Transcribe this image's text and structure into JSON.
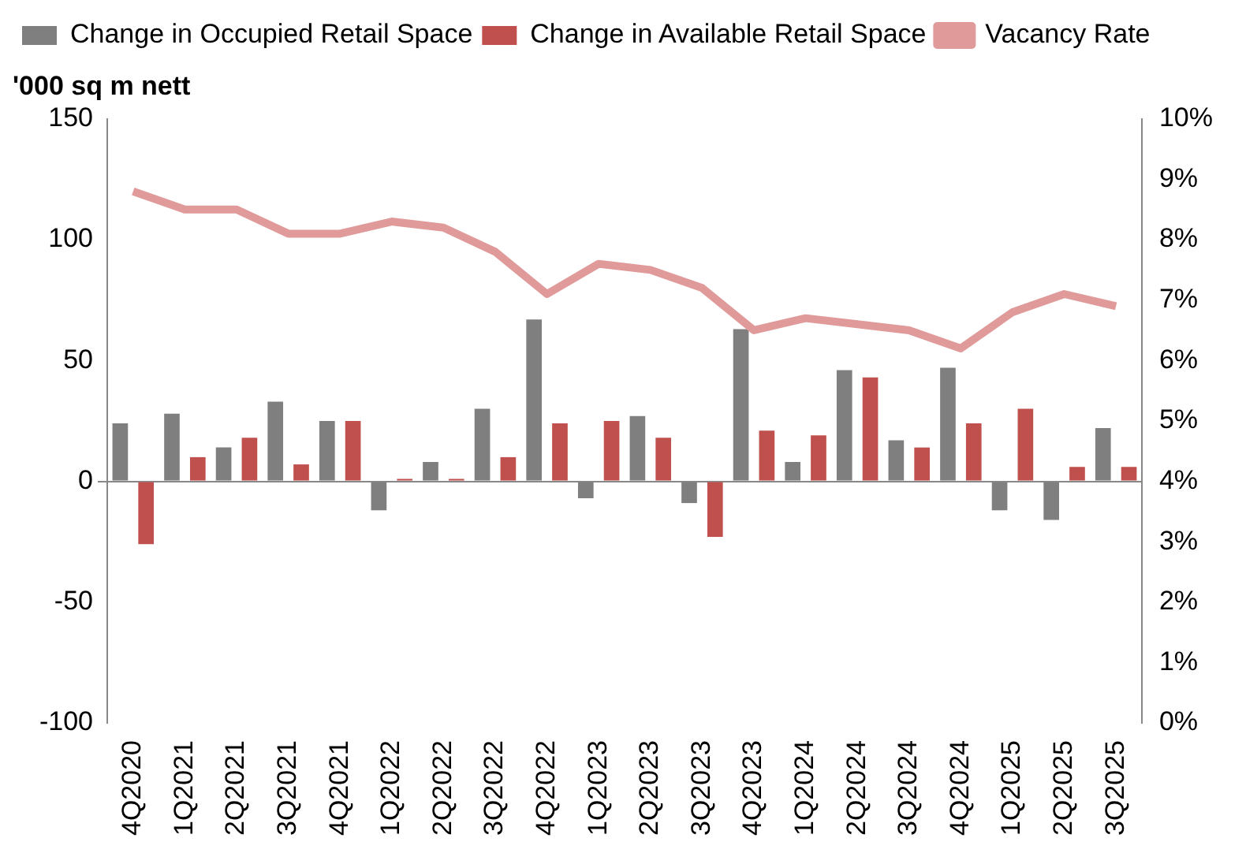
{
  "chart_data": {
    "type": "bar",
    "ylabel": "'000 sq m nett",
    "categories": [
      "4Q2020",
      "1Q2021",
      "2Q2021",
      "3Q2021",
      "4Q2021",
      "1Q2022",
      "2Q2022",
      "3Q2022",
      "4Q2022",
      "1Q2023",
      "2Q2023",
      "3Q2023",
      "4Q2023",
      "1Q2024",
      "2Q2024",
      "3Q2024",
      "4Q2024",
      "1Q2025",
      "2Q2025",
      "3Q2025"
    ],
    "series": [
      {
        "name": "Change in Occupied Retail Space",
        "color": "#7f7f7f",
        "values": [
          24,
          28,
          14,
          33,
          25,
          -12,
          8,
          30,
          67,
          -7,
          27,
          -9,
          63,
          8,
          46,
          17,
          47,
          -12,
          -16,
          22
        ]
      },
      {
        "name": "Change in Available Retail Space",
        "color": "#c0504d",
        "values": [
          -26,
          10,
          18,
          7,
          25,
          1,
          1,
          10,
          24,
          25,
          18,
          -23,
          21,
          19,
          43,
          14,
          24,
          30,
          6,
          6
        ]
      },
      {
        "name": "Vacancy Rate",
        "type": "line",
        "axis": "y2",
        "color": "#e09a9a",
        "values": [
          8.8,
          8.5,
          8.5,
          8.1,
          8.1,
          8.3,
          8.2,
          7.8,
          7.1,
          7.6,
          7.5,
          7.2,
          6.5,
          6.7,
          6.6,
          6.5,
          6.2,
          6.8,
          7.1,
          6.9
        ]
      }
    ],
    "ylim": [
      -100,
      150
    ],
    "yticks": [
      -100,
      -50,
      0,
      50,
      100,
      150
    ],
    "y2lim": [
      0,
      10
    ],
    "y2ticks": [
      {
        "value": 0,
        "label": "0%"
      },
      {
        "value": 1,
        "label": "1%"
      },
      {
        "value": 2,
        "label": "2%"
      },
      {
        "value": 3,
        "label": "3%"
      },
      {
        "value": 4,
        "label": "4%"
      },
      {
        "value": 5,
        "label": "5%"
      },
      {
        "value": 6,
        "label": "6%"
      },
      {
        "value": 7,
        "label": "7%"
      },
      {
        "value": 8,
        "label": "8%"
      },
      {
        "value": 9,
        "label": "9%"
      },
      {
        "value": 10,
        "label": "10%"
      }
    ],
    "legend": "top left",
    "marker": "none",
    "line_style": "solid"
  }
}
